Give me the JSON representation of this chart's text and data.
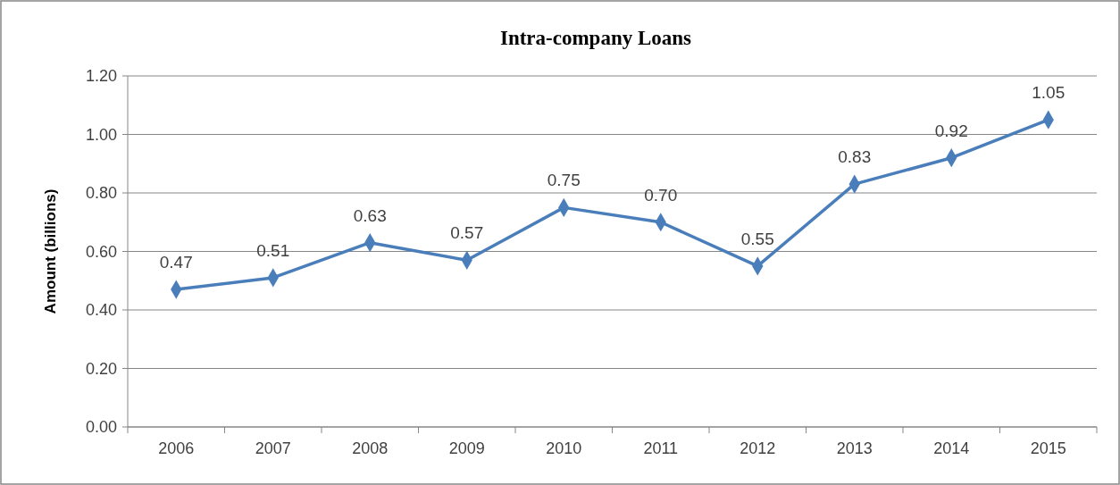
{
  "chart_data": {
    "type": "line",
    "title": "Intra-company Loans",
    "ylabel": "Amount (billions)",
    "categories": [
      "2006",
      "2007",
      "2008",
      "2009",
      "2010",
      "2011",
      "2012",
      "2013",
      "2014",
      "2015"
    ],
    "series": [
      {
        "color": "#4a7ebb",
        "values": [
          0.47,
          0.51,
          0.63,
          0.57,
          0.75,
          0.7,
          0.55,
          0.83,
          0.92,
          1.05
        ],
        "value_labels": [
          "0.47",
          "0.51",
          "0.63",
          "0.57",
          "0.75",
          "0.70",
          "0.55",
          "0.83",
          "0.92",
          "1.05"
        ]
      }
    ],
    "ylim": [
      0,
      1.2
    ],
    "yticks": [
      {
        "value": 0,
        "label": "0.00"
      },
      {
        "value": 0.2,
        "label": "0.20"
      },
      {
        "value": 0.4,
        "label": "0.40"
      },
      {
        "value": 0.6,
        "label": "0.60"
      },
      {
        "value": 0.8,
        "label": "0.80"
      },
      {
        "value": 1,
        "label": "1.00"
      },
      {
        "value": 1.2,
        "label": "1.20"
      }
    ],
    "grid": "y",
    "marker": "diamond",
    "line_style": "solid"
  }
}
